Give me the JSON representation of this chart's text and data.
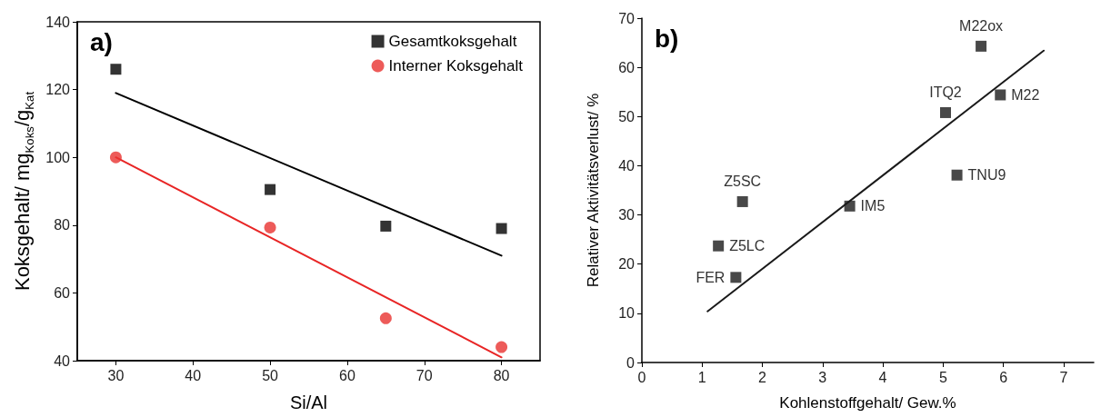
{
  "chart_data": [
    {
      "type": "scatter",
      "xlabel": "Si/Al",
      "ylabel": "Koksgehalt/ mg$_{Koks}$/g$_{Kat}$",
      "annotations": [
        "a)"
      ],
      "x": [
        30,
        50,
        65,
        80
      ],
      "series": [
        {
          "name": "Gesamtkoksgehalt",
          "color": "#000000",
          "marker": "square",
          "values": [
            126,
            90.5,
            79.7,
            79
          ]
        },
        {
          "name": "Interner Koksgehalt",
          "color": "#e8322f",
          "marker": "circle",
          "values": [
            100,
            79.3,
            52.5,
            44
          ]
        },
        {
          "type": "line",
          "x": [
            30,
            80
          ],
          "color": "#000000",
          "marker": "none",
          "values": [
            119,
            71
          ]
        },
        {
          "type": "line",
          "x": [
            30,
            80
          ],
          "color": "#e82525",
          "marker": "none",
          "values": [
            100,
            41
          ]
        }
      ],
      "xlim": [
        25,
        85
      ],
      "xticks": [
        30,
        40,
        50,
        60,
        70,
        80
      ],
      "ylim": [
        40,
        140
      ],
      "yticks": [
        40,
        60,
        80,
        100,
        120,
        140
      ],
      "legend": "top right"
    },
    {
      "type": "scatter",
      "xlabel": "Kohlenstoffgehalt/ Gew.%",
      "ylabel": "Relativer Aktivitätsverlust/ %",
      "annotations": [
        "b)",
        {
          "text": "FER",
          "x": 1.56,
          "y": 17.3
        },
        {
          "text": "Z5LC",
          "x": 1.27,
          "y": 23.7
        },
        {
          "text": "Z5SC",
          "x": 1.67,
          "y": 32.7
        },
        {
          "text": "IM5",
          "x": 3.45,
          "y": 31.8
        },
        {
          "text": "ITQ2",
          "x": 5.04,
          "y": 50.8
        },
        {
          "text": "TNU9",
          "x": 5.23,
          "y": 38.1
        },
        {
          "text": "M22ox",
          "x": 5.63,
          "y": 64.3
        },
        {
          "text": "M22",
          "x": 5.95,
          "y": 54.4
        }
      ],
      "series": [
        {
          "x": [
            1.56,
            1.27,
            1.67,
            3.45,
            5.04,
            5.23,
            5.63,
            5.95
          ],
          "color": "#1a1a1a",
          "marker": "square",
          "values": [
            17.3,
            23.7,
            32.7,
            31.8,
            50.8,
            38.1,
            64.3,
            54.4
          ]
        },
        {
          "type": "line",
          "x": [
            1.09,
            6.67
          ],
          "color": "#1a1a1a",
          "marker": "none",
          "values": [
            10.4,
            63.4
          ]
        }
      ],
      "xlim": [
        0,
        7.5
      ],
      "xticks": [
        0,
        1,
        2,
        3,
        4,
        5,
        6,
        7
      ],
      "ylim": [
        0,
        70
      ],
      "yticks": [
        0,
        10,
        20,
        30,
        40,
        50,
        60,
        70
      ]
    }
  ]
}
